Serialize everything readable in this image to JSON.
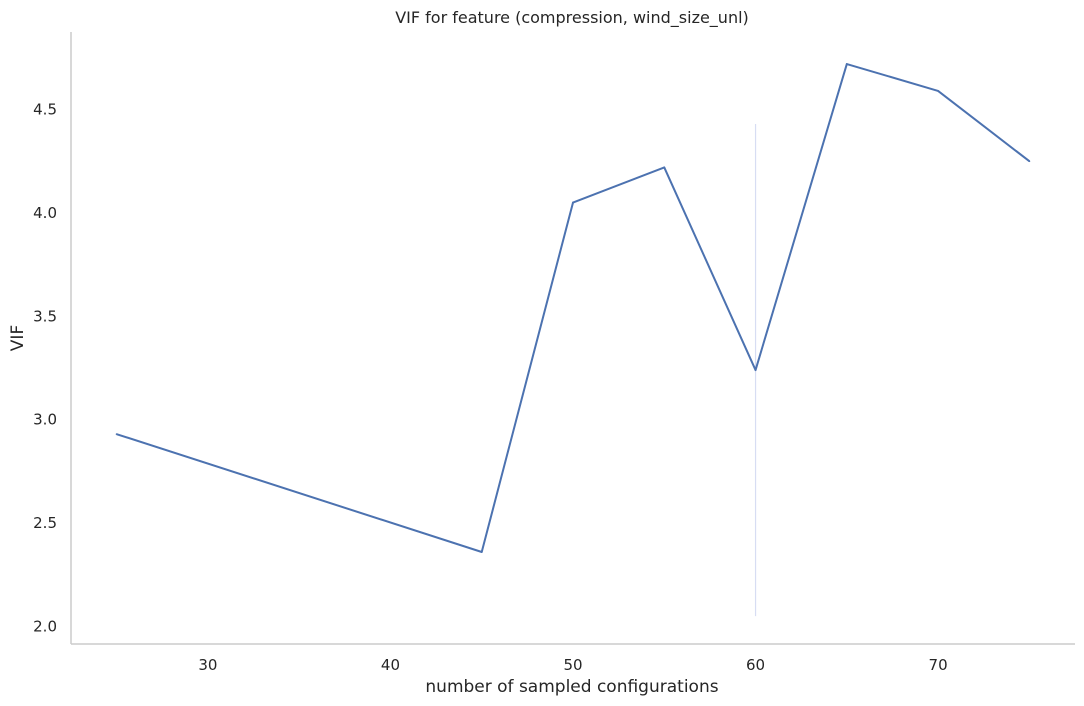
{
  "chart_data": {
    "type": "line",
    "title": "VIF for feature (compression, wind_size_unl)",
    "xlabel": "number of sampled configurations",
    "ylabel": "VIF",
    "xlim": [
      22.5,
      77.5
    ],
    "ylim": [
      1.915,
      4.875
    ],
    "xticks": [
      30,
      40,
      50,
      60,
      70
    ],
    "yticks": [
      2.0,
      2.5,
      3.0,
      3.5,
      4.0,
      4.5
    ],
    "ytick_labels": [
      "2.0",
      "2.5",
      "3.0",
      "3.5",
      "4.0",
      "4.5"
    ],
    "grid": false,
    "series": [
      {
        "color": "#4c72b0",
        "x": [
          25,
          45,
          50,
          55,
          60,
          65,
          70,
          75
        ],
        "y": [
          2.93,
          2.36,
          4.05,
          4.22,
          3.24,
          4.72,
          4.59,
          4.25
        ]
      }
    ],
    "vertical_marker": {
      "x": 60,
      "y_range": [
        2.05,
        4.43
      ],
      "color": "#d7ddf3"
    }
  }
}
